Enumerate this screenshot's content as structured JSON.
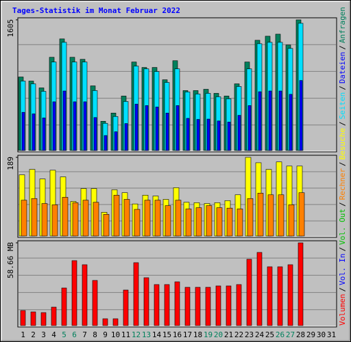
{
  "title": "Tages-Statistik im Monat Februar 2022",
  "legend_separator": "/",
  "legend_order": [
    [
      2,
      0
    ],
    [
      2,
      1
    ],
    [
      2,
      2
    ],
    [
      1,
      1
    ],
    [
      1,
      0
    ],
    [
      0,
      2
    ],
    [
      0,
      1
    ],
    [
      0,
      0
    ]
  ],
  "chart_data": [
    {
      "type": "bar",
      "ylim": [
        0,
        1605
      ],
      "yticks": [
        1605
      ],
      "series": [
        {
          "name": "Anfragen",
          "color": "#00805c",
          "values": [
            903,
            853,
            769,
            1145,
            1371,
            1145,
            1120,
            794,
            359,
            460,
            669,
            1087,
            1020,
            1020,
            869,
            1103,
            736,
            736,
            752,
            702,
            669,
            819,
            1087,
            1354,
            1404,
            1429,
            1296,
            1605,
            null,
            null,
            null
          ]
        },
        {
          "name": "Dateien",
          "color": "#0000ff",
          "values": [
            469,
            450,
            400,
            598,
            731,
            598,
            598,
            405,
            184,
            230,
            331,
            570,
            552,
            534,
            460,
            552,
            395,
            382,
            386,
            363,
            349,
            432,
            552,
            722,
            731,
            731,
            690,
            860,
            null,
            null,
            null
          ]
        },
        {
          "name": "Seiten",
          "color": "#00e0ff",
          "values": [
            853,
            819,
            727,
            1087,
            1329,
            1087,
            1087,
            736,
            334,
            418,
            602,
            1037,
            1003,
            970,
            836,
            1003,
            719,
            694,
            702,
            660,
            635,
            786,
            1003,
            1312,
            1329,
            1329,
            1254,
            1563,
            null,
            null,
            null
          ]
        }
      ]
    },
    {
      "type": "bar",
      "ylim": [
        0,
        189
      ],
      "yticks": [
        189
      ],
      "series": [
        {
          "name": "Besuche",
          "color": "#ffff00",
          "values": [
            147,
            160,
            137,
            158,
            142,
            83,
            114,
            114,
            57,
            111,
            104,
            77,
            98,
            96,
            88,
            116,
            81,
            80,
            78,
            80,
            85,
            99,
            189,
            176,
            160,
            178,
            168,
            168,
            null,
            null,
            null
          ]
        },
        {
          "name": "Rechner",
          "color": "#ff8000",
          "values": [
            86,
            90,
            78,
            75,
            93,
            80,
            86,
            81,
            52,
            98,
            88,
            64,
            86,
            86,
            73,
            86,
            65,
            68,
            73,
            68,
            67,
            65,
            90,
            103,
            99,
            99,
            75,
            104,
            null,
            null,
            null
          ]
        }
      ]
    },
    {
      "type": "bar",
      "ylim": [
        0,
        58.66
      ],
      "yticks": [
        {
          "value": 58.66,
          "label": "58.66 MB"
        }
      ],
      "categories": [
        "1",
        "2",
        "3",
        "4",
        "5",
        "6",
        "7",
        "8",
        "9",
        "10",
        "11",
        "12",
        "13",
        "14",
        "15",
        "16",
        "17",
        "18",
        "19",
        "20",
        "21",
        "22",
        "23",
        "24",
        "25",
        "26",
        "27",
        "28",
        "29",
        "30",
        "31"
      ],
      "highlight_color": "#00805c",
      "highlighted": [
        4,
        5,
        11,
        12,
        18,
        19,
        25,
        26
      ],
      "series": [
        {
          "name": "Volumen",
          "color": "#ff0000",
          "values": [
            10.67,
            9.7,
            9.21,
            13.09,
            26.66,
            46.05,
            43.15,
            32.0,
            4.85,
            4.85,
            25.21,
            44.6,
            33.94,
            29.09,
            29.09,
            31.03,
            27.15,
            27.15,
            27.15,
            28.12,
            28.12,
            29.09,
            47.03,
            51.87,
            41.69,
            41.69,
            43.15,
            58.66,
            null,
            null,
            null
          ]
        },
        {
          "name": "Vol. In",
          "color": "#0000ff"
        },
        {
          "name": "Vol. Out",
          "color": "#00c000"
        }
      ]
    }
  ]
}
